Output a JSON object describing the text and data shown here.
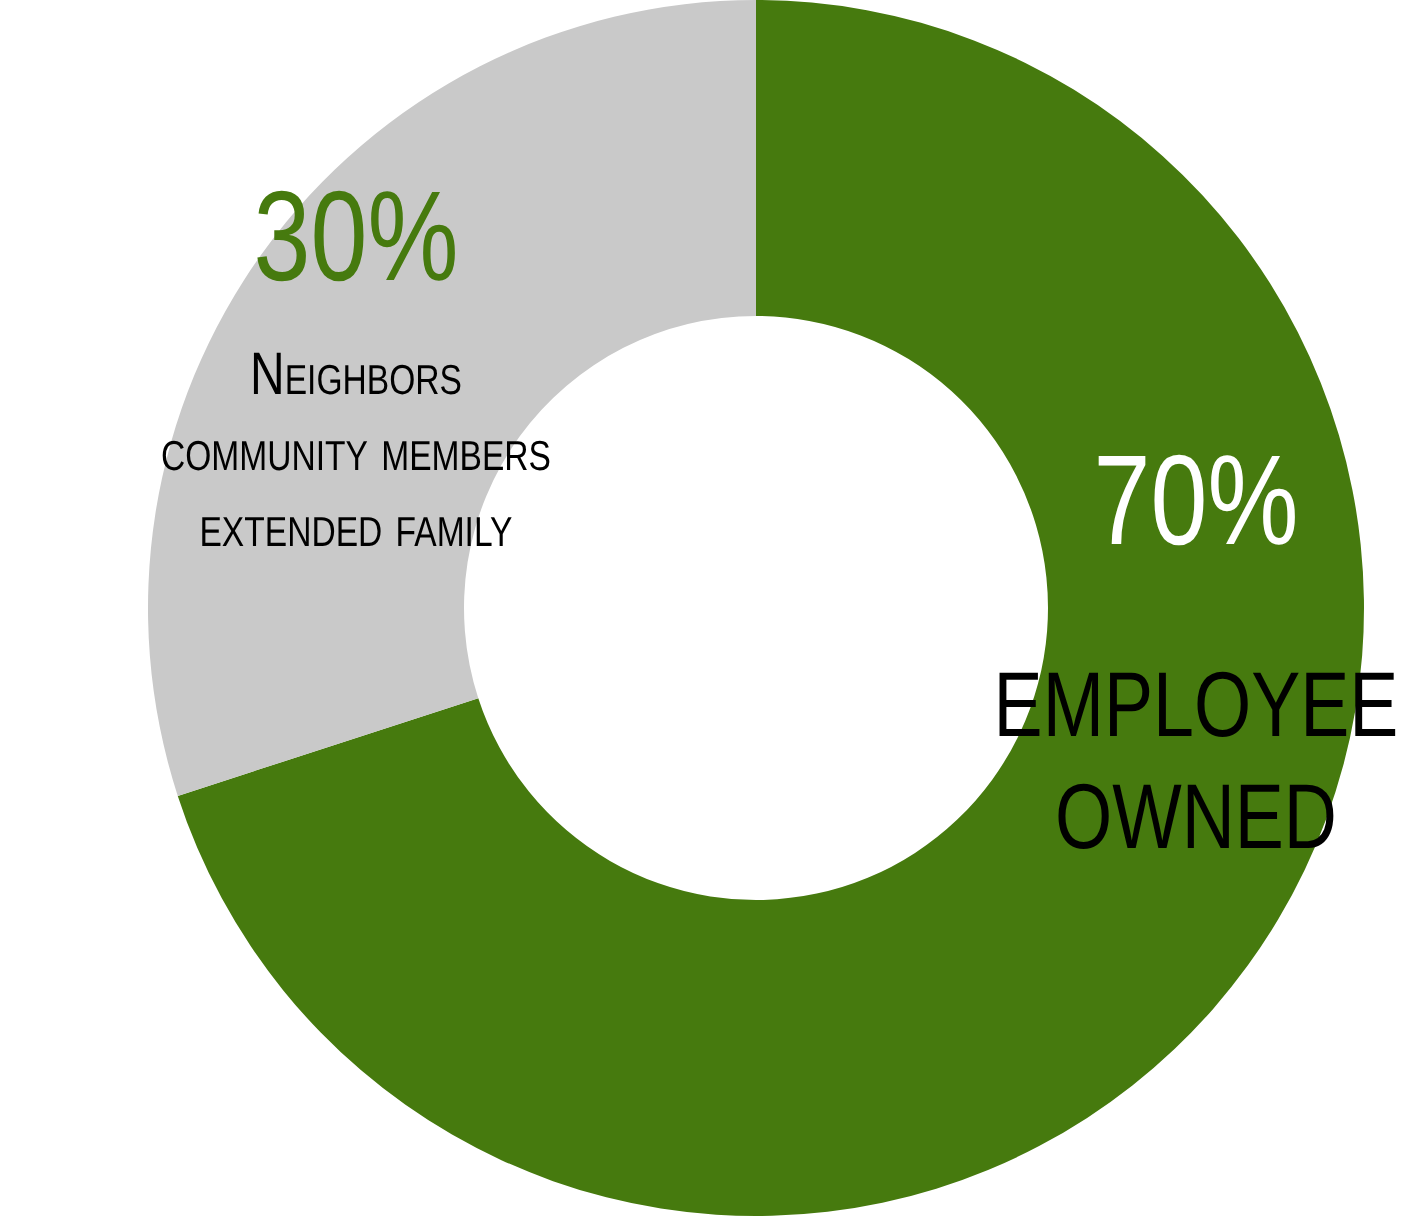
{
  "chart_data": {
    "type": "donut",
    "categories": [
      "EMPLOYEE\nOWNED",
      "Neighbors\ncommunity members\nextended family"
    ],
    "values": [
      70,
      30
    ],
    "colors": [
      "#467a0e",
      "#c9c9c9"
    ],
    "value_labels": [
      "70%",
      "30%"
    ],
    "legend": false
  }
}
